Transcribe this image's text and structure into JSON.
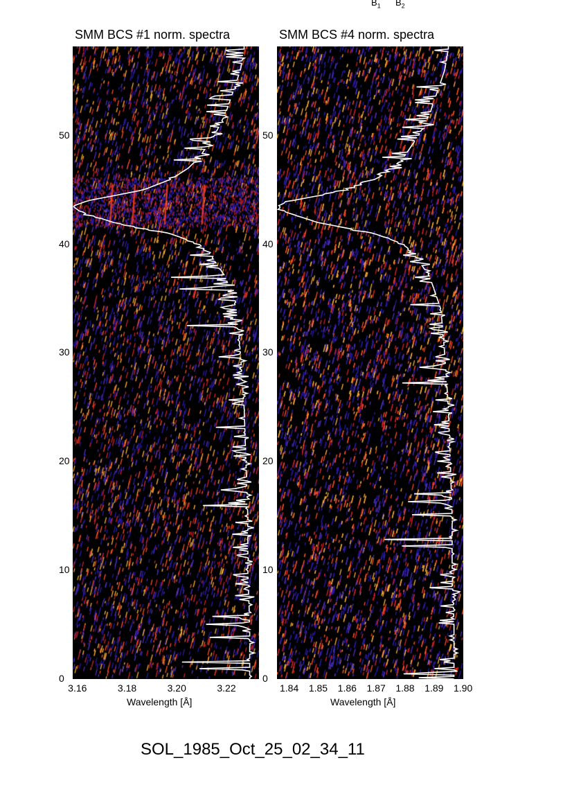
{
  "legend": {
    "b1": "B",
    "b1_sub": "1",
    "b2": "B",
    "b2_sub": "2"
  },
  "footer": "SOL_1985_Oct_25_02_34_11",
  "colors": {
    "background": "#000000",
    "low": "#2a1aa8",
    "mid": "#d0202a",
    "high": "#ffb030",
    "curve": "#ffffff"
  },
  "chart_data": [
    {
      "type": "heatmap",
      "title": "SMM BCS #1 norm. spectra",
      "xlabel": "Wavelength [Å]",
      "ylabel": "",
      "xlim": [
        3.158,
        3.233
      ],
      "ylim": [
        0,
        58.2
      ],
      "xticks": [
        "3.16",
        "3.18",
        "3.20",
        "3.22"
      ],
      "xtick_values": [
        3.16,
        3.18,
        3.2,
        3.22
      ],
      "yticks": [
        "0",
        "10",
        "20",
        "30",
        "40",
        "50"
      ],
      "ytick_values": [
        0,
        10,
        20,
        30,
        40,
        50
      ],
      "line_features": [
        3.173,
        3.182,
        3.195,
        3.21
      ],
      "light_curve": {
        "t": [
          0,
          5,
          10,
          15,
          20,
          25,
          30,
          34,
          37,
          39,
          40,
          41,
          42,
          43,
          43.5,
          44,
          45,
          46,
          47,
          48,
          50,
          52,
          54,
          56,
          58
        ],
        "flux": [
          0.05,
          0.05,
          0.06,
          0.06,
          0.07,
          0.08,
          0.1,
          0.12,
          0.18,
          0.26,
          0.32,
          0.48,
          0.78,
          0.96,
          1.0,
          0.92,
          0.62,
          0.47,
          0.38,
          0.32,
          0.24,
          0.18,
          0.14,
          0.1,
          0.08
        ]
      }
    },
    {
      "type": "heatmap",
      "title": "SMM BCS #4 norm. spectra",
      "xlabel": "Wavelength [Å]",
      "ylabel": "",
      "xlim": [
        1.8357,
        1.9
      ],
      "ylim": [
        0,
        58.2
      ],
      "xticks": [
        "1.84",
        "1.85",
        "1.86",
        "1.87",
        "1.88",
        "1.89",
        "1.90"
      ],
      "xtick_values": [
        1.84,
        1.85,
        1.86,
        1.87,
        1.88,
        1.89,
        1.9
      ],
      "yticks": [
        "0",
        "10",
        "20",
        "30",
        "40",
        "50"
      ],
      "ytick_values": [
        0,
        10,
        20,
        30,
        40,
        50
      ],
      "line_features": [],
      "light_curve": {
        "t": [
          0,
          5,
          10,
          15,
          20,
          25,
          30,
          34,
          37,
          39,
          40,
          41,
          42,
          43,
          43.5,
          44,
          45,
          46,
          47,
          48,
          50,
          52,
          54,
          56,
          58
        ],
        "flux": [
          0.05,
          0.05,
          0.06,
          0.06,
          0.07,
          0.08,
          0.1,
          0.12,
          0.18,
          0.26,
          0.32,
          0.48,
          0.78,
          0.96,
          1.0,
          0.92,
          0.62,
          0.47,
          0.38,
          0.32,
          0.24,
          0.18,
          0.14,
          0.1,
          0.08
        ]
      }
    }
  ]
}
